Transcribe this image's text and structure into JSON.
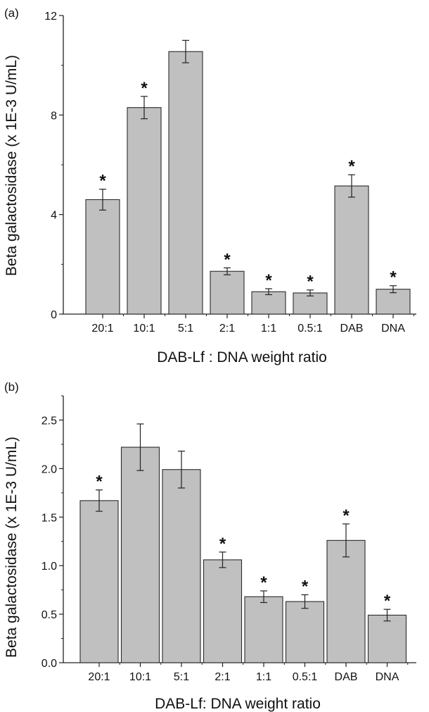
{
  "chart_data": [
    {
      "panel_label": "(a)",
      "type": "bar",
      "categories": [
        "20:1",
        "10:1",
        "5:1",
        "2:1",
        "1:1",
        "0.5:1",
        "DAB",
        "DNA"
      ],
      "values": [
        4.6,
        8.3,
        10.55,
        1.72,
        0.9,
        0.85,
        5.15,
        1.0
      ],
      "errors": [
        0.42,
        0.45,
        0.45,
        0.14,
        0.12,
        0.12,
        0.45,
        0.14
      ],
      "significance": [
        "*",
        "*",
        "",
        "*",
        "*",
        "*",
        "*",
        "*"
      ],
      "xlabel": "DAB-Lf : DNA weight ratio",
      "ylabel": "Beta galactosidase (x 1E-3 U/mL)",
      "ylim": [
        0,
        12
      ],
      "yticks": [
        "0",
        "4",
        "8",
        "12"
      ],
      "grid": false,
      "bar_color": "#c0c0c0"
    },
    {
      "panel_label": "(b)",
      "type": "bar",
      "categories": [
        "20:1",
        "10:1",
        "5:1",
        "2:1",
        "1:1",
        "0.5:1",
        "DAB",
        "DNA"
      ],
      "values": [
        1.67,
        2.22,
        1.99,
        1.06,
        0.68,
        0.63,
        1.26,
        0.49
      ],
      "errors": [
        0.11,
        0.24,
        0.19,
        0.08,
        0.06,
        0.07,
        0.17,
        0.06
      ],
      "significance": [
        "*",
        "",
        "",
        "*",
        "*",
        "*",
        "*",
        "*"
      ],
      "xlabel": "DAB-Lf: DNA weight ratio",
      "ylabel": "Beta galactosidase (x 1E-3 U/mL)",
      "ylim": [
        0,
        2.75
      ],
      "yticks": [
        "0.0",
        "0.5",
        "1.0",
        "1.5",
        "2.0",
        "2.5"
      ],
      "grid": false,
      "bar_color": "#c0c0c0"
    }
  ]
}
